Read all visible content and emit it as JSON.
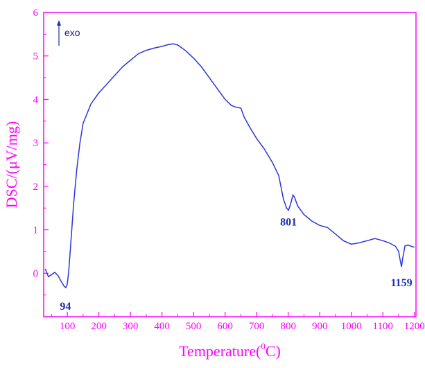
{
  "chart_data": {
    "type": "line",
    "title": "",
    "xlabel": "Temperature(",
    "xlabel_sup": "0",
    "xlabel_tail": "C)",
    "ylabel": "DSC/(μV/mg)",
    "xlim": [
      25,
      1205
    ],
    "ylim": [
      -1,
      6
    ],
    "x_ticks": [
      100,
      200,
      300,
      400,
      500,
      600,
      700,
      800,
      900,
      1000,
      1100,
      1200
    ],
    "y_ticks": [
      0,
      1,
      2,
      3,
      4,
      5,
      6
    ],
    "grid": false,
    "axis_color": "#ff00ff",
    "line_color": "#2a35d9",
    "annotation_color": "#1f2db0",
    "exo_label": "exo",
    "annotations": [
      {
        "text": "94",
        "x": 94,
        "y": -0.33
      },
      {
        "text": "801",
        "x": 801,
        "y": 1.45
      },
      {
        "text": "1159",
        "x": 1159,
        "y": 0.15
      }
    ],
    "series": [
      {
        "x": [
          30,
          40,
          50,
          60,
          70,
          80,
          90,
          95,
          100,
          105,
          110,
          120,
          130,
          140,
          150,
          175,
          200,
          225,
          250,
          275,
          300,
          325,
          350,
          375,
          400,
          420,
          435,
          450,
          475,
          500,
          525,
          550,
          575,
          600,
          620,
          635,
          650,
          660,
          675,
          700,
          725,
          750,
          770,
          785,
          795,
          801,
          808,
          815,
          820,
          830,
          850,
          875,
          900,
          925,
          950,
          975,
          1000,
          1025,
          1050,
          1075,
          1100,
          1120,
          1140,
          1150,
          1155,
          1159,
          1163,
          1170,
          1180,
          1190,
          1200
        ],
        "y": [
          0.1,
          -0.08,
          -0.03,
          0.02,
          -0.05,
          -0.18,
          -0.3,
          -0.33,
          -0.25,
          0.1,
          0.6,
          1.6,
          2.4,
          3.0,
          3.45,
          3.9,
          4.15,
          4.35,
          4.55,
          4.75,
          4.9,
          5.05,
          5.13,
          5.18,
          5.22,
          5.26,
          5.28,
          5.25,
          5.12,
          4.95,
          4.75,
          4.5,
          4.25,
          4.0,
          3.86,
          3.82,
          3.8,
          3.6,
          3.4,
          3.1,
          2.85,
          2.55,
          2.25,
          1.7,
          1.5,
          1.45,
          1.6,
          1.8,
          1.75,
          1.55,
          1.35,
          1.2,
          1.1,
          1.05,
          0.9,
          0.75,
          0.67,
          0.7,
          0.75,
          0.8,
          0.75,
          0.7,
          0.62,
          0.5,
          0.3,
          0.15,
          0.35,
          0.63,
          0.65,
          0.62,
          0.6
        ]
      }
    ]
  }
}
